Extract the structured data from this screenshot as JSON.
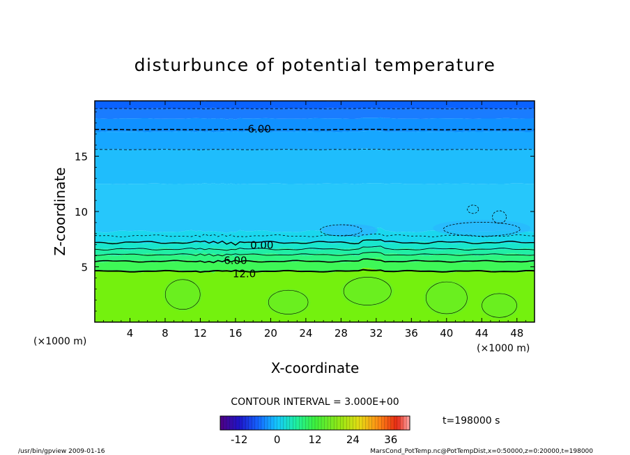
{
  "chart_data": {
    "type": "heatmap",
    "title": "disturbunce of potential temperature",
    "xlabel": "X-coordinate",
    "ylabel": "Z-coordinate",
    "x_unit_left": "(×1000 m)",
    "x_unit_right": "(×1000 m)",
    "xlim": [
      0,
      50
    ],
    "ylim": [
      0,
      20
    ],
    "xticks": [
      4,
      8,
      12,
      16,
      20,
      24,
      28,
      32,
      36,
      40,
      44,
      48
    ],
    "yticks": [
      5,
      10,
      15
    ],
    "contour_interval_text": "CONTOUR INTERVAL = 3.000E+00",
    "contour_labels": [
      {
        "text": "-6.00",
        "x": 18.5,
        "z": 17.4
      },
      {
        "text": "0.00",
        "x": 19.0,
        "z": 6.9
      },
      {
        "text": "6.00",
        "x": 16.0,
        "z": 5.5
      },
      {
        "text": "12.0",
        "x": 17.0,
        "z": 4.3
      }
    ],
    "colorbar": {
      "ticks": [
        "-12",
        "0",
        "12",
        "24",
        "36"
      ],
      "tick_values": [
        -12,
        0,
        12,
        24,
        36
      ],
      "range": [
        -18,
        42
      ]
    },
    "time_label": "t=198000 s",
    "layers": [
      {
        "z_top": 20,
        "value": -10,
        "color": "#0a62ff"
      },
      {
        "z_top": 19.3,
        "value": -8,
        "color": "#1a7cff"
      },
      {
        "z_top": 18.4,
        "value": -7,
        "color": "#0f90ff"
      },
      {
        "z_top": 17.2,
        "value": -5,
        "color": "#17a7ff"
      },
      {
        "z_top": 15.6,
        "value": -3,
        "color": "#1fbdfc"
      },
      {
        "z_top": 12.5,
        "value": -2,
        "color": "#26c7fb"
      },
      {
        "z_top": 8.2,
        "value": 0,
        "color": "#1ad7ee"
      },
      {
        "z_top": 7.2,
        "value": 2,
        "color": "#19e6cd"
      },
      {
        "z_top": 6.6,
        "value": 4,
        "color": "#21eea5"
      },
      {
        "z_top": 6.1,
        "value": 6,
        "color": "#2ef580"
      },
      {
        "z_top": 5.5,
        "value": 9,
        "color": "#3ef757"
      },
      {
        "z_top": 4.6,
        "value": 12,
        "color": "#74f10e"
      }
    ]
  },
  "footer": {
    "left": "/usr/bin/gpview   2009-01-16",
    "right": "MarsCond_PotTemp.nc@PotTempDist,x=0:50000,z=0:20000,t=198000"
  }
}
